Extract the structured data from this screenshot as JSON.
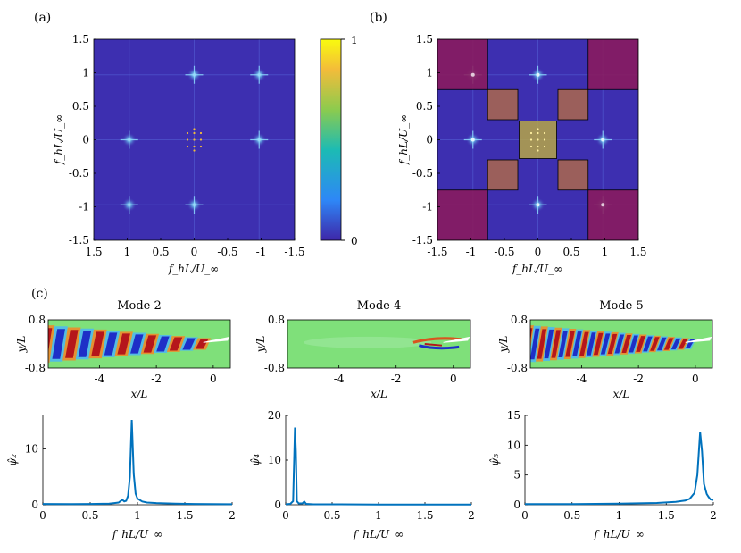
{
  "panel_labels": {
    "a": "(a)",
    "b": "(b)",
    "c": "(c)"
  },
  "labels": {
    "freq_x": "f_hL/U_∞",
    "freq_y": "f_hL/U_∞",
    "wake_x": "x/L",
    "wake_y": "y/L",
    "psi2": "ψ̂₂",
    "psi4": "ψ̂₄",
    "psi5": "ψ̂₅"
  },
  "colorbar": {
    "min_label": "0",
    "max_label": "1",
    "colors": [
      "#3e26a8",
      "#2e87f7",
      "#1cbbb4",
      "#8ccb4e",
      "#f3bc3a",
      "#f9fb0e"
    ]
  },
  "colors": {
    "map_bg": "#3d2fb0",
    "region_magenta": "#8b1a5c",
    "region_brown": "#a8674f",
    "region_olive": "#b5a548",
    "line": "#0072bd",
    "wake_bg": "#7fe07a"
  },
  "chart_data": [
    {
      "id": "a",
      "type": "heatmap",
      "title": "(a)",
      "xlabel": "f_hL/U_∞",
      "ylabel": "f_hL/U_∞",
      "xlim": [
        -1.5,
        1.5
      ],
      "ylim": [
        -1.5,
        1.5
      ],
      "xticks": [
        "1.5",
        "1",
        "0.5",
        "0",
        "-0.5",
        "-1",
        "-1.5"
      ],
      "yticks": [
        "1.5",
        "1",
        "0.5",
        "0",
        "-0.5",
        "-1",
        "-1.5"
      ],
      "x_axis_reversed": true,
      "peaks": [
        {
          "x": -0.97,
          "y": 0.97
        },
        {
          "x": 0,
          "y": 0.97
        },
        {
          "x": -0.97,
          "y": 0
        },
        {
          "x": 0.97,
          "y": 0
        },
        {
          "x": 0,
          "y": -0.97
        },
        {
          "x": 0.97,
          "y": -0.97
        }
      ],
      "central_dots": [
        {
          "x": -0.1,
          "y": 0.1
        },
        {
          "x": 0,
          "y": 0.1
        },
        {
          "x": 0.1,
          "y": 0.1
        },
        {
          "x": -0.1,
          "y": 0
        },
        {
          "x": 0,
          "y": 0
        },
        {
          "x": 0.1,
          "y": 0
        },
        {
          "x": -0.1,
          "y": -0.1
        },
        {
          "x": 0,
          "y": -0.1
        },
        {
          "x": 0.1,
          "y": -0.1
        },
        {
          "x": 0,
          "y": 0.16
        },
        {
          "x": 0,
          "y": -0.16
        }
      ],
      "colorbar_range": [
        0,
        1
      ]
    },
    {
      "id": "b",
      "type": "heatmap",
      "title": "(b)",
      "xlabel": "f_hL/U_∞",
      "ylabel": "f_hL/U_∞",
      "xlim": [
        -1.5,
        1.5
      ],
      "ylim": [
        -1.5,
        1.5
      ],
      "xticks": [
        "-1.5",
        "-1",
        "-0.5",
        "0",
        "0.5",
        "1",
        "1.5"
      ],
      "yticks": [
        "1.5",
        "1",
        "0.5",
        "0",
        "-0.5",
        "-1",
        "-1.5"
      ],
      "regions": [
        {
          "color": "magenta",
          "x": [
            -1.5,
            -0.75
          ],
          "y": [
            0.75,
            1.5
          ]
        },
        {
          "color": "magenta",
          "x": [
            0.75,
            1.5
          ],
          "y": [
            0.75,
            1.5
          ]
        },
        {
          "color": "magenta",
          "x": [
            -1.5,
            -0.75
          ],
          "y": [
            -1.5,
            -0.75
          ]
        },
        {
          "color": "magenta",
          "x": [
            0.75,
            1.5
          ],
          "y": [
            -1.5,
            -0.75
          ]
        },
        {
          "color": "brown",
          "x": [
            -0.75,
            -0.3
          ],
          "y": [
            0.3,
            0.75
          ]
        },
        {
          "color": "brown",
          "x": [
            0.3,
            0.75
          ],
          "y": [
            0.3,
            0.75
          ]
        },
        {
          "color": "brown",
          "x": [
            -0.75,
            -0.3
          ],
          "y": [
            -0.75,
            -0.3
          ]
        },
        {
          "color": "brown",
          "x": [
            0.3,
            0.75
          ],
          "y": [
            -0.75,
            -0.3
          ]
        },
        {
          "color": "olive",
          "x": [
            -0.28,
            0.28
          ],
          "y": [
            -0.28,
            0.28
          ]
        }
      ],
      "peaks": [
        {
          "x": -0.97,
          "y": 0.97
        },
        {
          "x": 0,
          "y": 0.97
        },
        {
          "x": -0.97,
          "y": 0
        },
        {
          "x": 0.97,
          "y": 0
        },
        {
          "x": 0,
          "y": -0.97
        },
        {
          "x": 0.97,
          "y": -0.97
        }
      ]
    },
    {
      "id": "mode2",
      "type": "heatmap",
      "title": "Mode 2",
      "xlabel": "x/L",
      "ylabel": "y/L",
      "xlim": [
        -5.8,
        0.6
      ],
      "ylim": [
        -0.8,
        0.8
      ],
      "xticks": [
        "-4",
        "-2",
        "0"
      ],
      "yticks": [
        "0.8",
        "-0.8"
      ],
      "stripes": 13,
      "amplitude": 1
    },
    {
      "id": "mode4",
      "type": "heatmap",
      "title": "Mode 4",
      "xlabel": "x/L",
      "ylabel": "y/L",
      "xlim": [
        -5.8,
        0.6
      ],
      "ylim": [
        -0.8,
        0.8
      ],
      "xticks": [
        "-4",
        "-2",
        "0"
      ],
      "yticks": [
        "0.8",
        "-0.8"
      ],
      "stripes": 0,
      "amplitude": 0.15
    },
    {
      "id": "mode5",
      "type": "heatmap",
      "title": "Mode 5",
      "xlabel": "x/L",
      "ylabel": "y/L",
      "xlim": [
        -5.8,
        0.6
      ],
      "ylim": [
        -0.8,
        0.8
      ],
      "xticks": [
        "-4",
        "-2",
        "0"
      ],
      "yticks": [
        "0.8",
        "-0.8"
      ],
      "stripes": 24,
      "amplitude": 1
    },
    {
      "id": "spec2",
      "type": "line",
      "xlabel": "f_hL/U_∞",
      "ylabel": "ψ̂₂",
      "xlim": [
        0,
        2
      ],
      "ylim": [
        0,
        16
      ],
      "xticks": [
        "0",
        "0.5",
        "1",
        "1.5",
        "2"
      ],
      "yticks": [
        "0",
        "10"
      ],
      "x": [
        0,
        0.3,
        0.5,
        0.7,
        0.8,
        0.84,
        0.86,
        0.88,
        0.9,
        0.92,
        0.94,
        0.96,
        0.98,
        1.0,
        1.05,
        1.1,
        1.2,
        1.4,
        1.6,
        2.0
      ],
      "y": [
        0.15,
        0.12,
        0.15,
        0.2,
        0.4,
        0.9,
        0.6,
        0.7,
        1.6,
        5.0,
        15.2,
        5.5,
        2.0,
        1.1,
        0.6,
        0.4,
        0.3,
        0.2,
        0.15,
        0.1
      ]
    },
    {
      "id": "spec4",
      "type": "line",
      "xlabel": "f_hL/U_∞",
      "ylabel": "ψ̂₄",
      "xlim": [
        0,
        2
      ],
      "ylim": [
        0,
        20
      ],
      "xticks": [
        "0",
        "0.5",
        "1",
        "1.5",
        "2"
      ],
      "yticks": [
        "0",
        "10",
        "20"
      ],
      "x": [
        0,
        0.05,
        0.08,
        0.1,
        0.11,
        0.12,
        0.14,
        0.18,
        0.2,
        0.22,
        0.3,
        0.5,
        1.0,
        1.5,
        2.0
      ],
      "y": [
        0.1,
        0.2,
        0.8,
        17.3,
        12.0,
        0.8,
        0.3,
        0.3,
        0.7,
        0.2,
        0.1,
        0.1,
        0.05,
        0.05,
        0.05
      ]
    },
    {
      "id": "spec5",
      "type": "line",
      "xlabel": "f_hL/U_∞",
      "ylabel": "ψ̂₅",
      "xlim": [
        0,
        2
      ],
      "ylim": [
        0,
        15
      ],
      "xticks": [
        "0",
        "0.5",
        "1",
        "1.5",
        "2"
      ],
      "yticks": [
        "0",
        "5",
        "10",
        "15"
      ],
      "x": [
        0,
        0.5,
        1.0,
        1.4,
        1.6,
        1.7,
        1.75,
        1.8,
        1.83,
        1.86,
        1.88,
        1.9,
        1.93,
        1.95,
        1.97,
        2.0
      ],
      "y": [
        0.1,
        0.1,
        0.2,
        0.3,
        0.5,
        0.7,
        1.0,
        2.0,
        5.0,
        12.2,
        9.0,
        3.5,
        1.8,
        1.3,
        0.9,
        0.8
      ]
    }
  ]
}
